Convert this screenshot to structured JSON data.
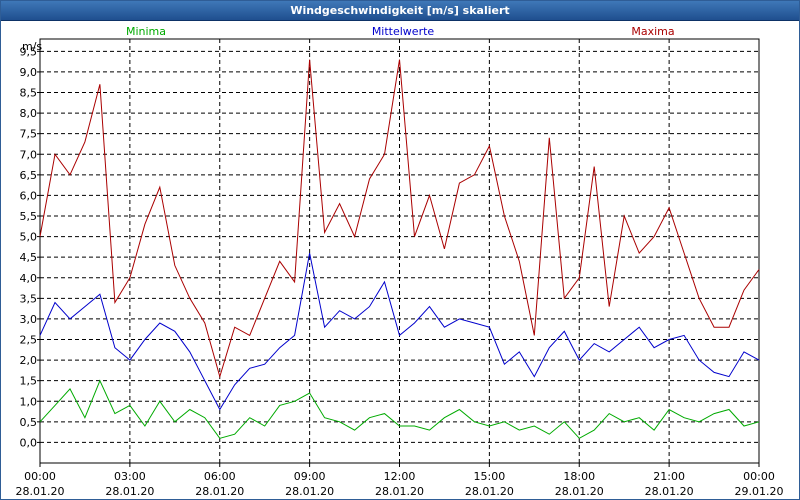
{
  "chart_data": {
    "type": "line",
    "title": "Windgeschwindigkeit [m/s] skaliert",
    "ylabel": "m/s",
    "xlabel": "",
    "ylim": [
      -0.5,
      9.8
    ],
    "grid": true,
    "y_ticks": [
      "0,0",
      "0,5",
      "1,0",
      "1,5",
      "2,0",
      "2,5",
      "3,0",
      "3,5",
      "4,0",
      "4,5",
      "5,0",
      "5,5",
      "6,0",
      "6,5",
      "7,0",
      "7,5",
      "8,0",
      "8,5",
      "9,0",
      "9,5"
    ],
    "x_ticks": [
      {
        "time": "00:00",
        "date": "28.01.20"
      },
      {
        "time": "03:00",
        "date": "28.01.20"
      },
      {
        "time": "06:00",
        "date": "28.01.20"
      },
      {
        "time": "09:00",
        "date": "28.01.20"
      },
      {
        "time": "12:00",
        "date": "28.01.20"
      },
      {
        "time": "15:00",
        "date": "28.01.20"
      },
      {
        "time": "18:00",
        "date": "28.01.20"
      },
      {
        "time": "21:00",
        "date": "28.01.20"
      },
      {
        "time": "00:00",
        "date": "29.01.20"
      }
    ],
    "x_range_hours": [
      0,
      24
    ],
    "series": [
      {
        "name": "Minima",
        "color": "#00aa00",
        "x": [
          0,
          0.5,
          1,
          1.5,
          2,
          2.5,
          3,
          3.5,
          4,
          4.5,
          5,
          5.5,
          6,
          6.5,
          7,
          7.5,
          8,
          8.5,
          9,
          9.5,
          10,
          10.5,
          11,
          11.5,
          12,
          12.5,
          13,
          13.5,
          14,
          14.5,
          15,
          15.5,
          16,
          16.5,
          17,
          17.5,
          18,
          18.5,
          19,
          19.5,
          20,
          20.5,
          21,
          21.5,
          22,
          22.5,
          23,
          23.5,
          24
        ],
        "values": [
          0.5,
          0.9,
          1.3,
          0.6,
          1.5,
          0.7,
          0.9,
          0.4,
          1.0,
          0.5,
          0.8,
          0.6,
          0.1,
          0.2,
          0.6,
          0.4,
          0.9,
          1.0,
          1.2,
          0.6,
          0.5,
          0.3,
          0.6,
          0.7,
          0.4,
          0.4,
          0.3,
          0.6,
          0.8,
          0.5,
          0.4,
          0.5,
          0.3,
          0.4,
          0.2,
          0.5,
          0.1,
          0.3,
          0.7,
          0.5,
          0.6,
          0.3,
          0.8,
          0.6,
          0.5,
          0.7,
          0.8,
          0.4,
          0.5
        ]
      },
      {
        "name": "Mittelwerte",
        "color": "#0000cc",
        "x": [
          0,
          0.5,
          1,
          1.5,
          2,
          2.5,
          3,
          3.5,
          4,
          4.5,
          5,
          5.5,
          6,
          6.5,
          7,
          7.5,
          8,
          8.5,
          9,
          9.5,
          10,
          10.5,
          11,
          11.5,
          12,
          12.5,
          13,
          13.5,
          14,
          14.5,
          15,
          15.5,
          16,
          16.5,
          17,
          17.5,
          18,
          18.5,
          19,
          19.5,
          20,
          20.5,
          21,
          21.5,
          22,
          22.5,
          23,
          23.5,
          24
        ],
        "values": [
          2.6,
          3.4,
          3.0,
          3.3,
          3.6,
          2.3,
          2.0,
          2.5,
          2.9,
          2.7,
          2.2,
          1.5,
          0.8,
          1.4,
          1.8,
          1.9,
          2.3,
          2.6,
          4.6,
          2.8,
          3.2,
          3.0,
          3.3,
          3.9,
          2.6,
          2.9,
          3.3,
          2.8,
          3.0,
          2.9,
          2.8,
          1.9,
          2.2,
          1.6,
          2.3,
          2.7,
          2.0,
          2.4,
          2.2,
          2.5,
          2.8,
          2.3,
          2.5,
          2.6,
          2.0,
          1.7,
          1.6,
          2.2,
          2.0
        ]
      },
      {
        "name": "Maxima",
        "color": "#aa0000",
        "x": [
          0,
          0.5,
          1,
          1.5,
          2,
          2.5,
          3,
          3.5,
          4,
          4.5,
          5,
          5.5,
          6,
          6.5,
          7,
          7.5,
          8,
          8.5,
          9,
          9.5,
          10,
          10.5,
          11,
          11.5,
          12,
          12.5,
          13,
          13.5,
          14,
          14.5,
          15,
          15.5,
          16,
          16.5,
          17,
          17.5,
          18,
          18.5,
          19,
          19.5,
          20,
          20.5,
          21,
          21.5,
          22,
          22.5,
          23,
          23.5,
          24
        ],
        "values": [
          5.0,
          7.0,
          6.5,
          7.3,
          8.7,
          3.4,
          4.0,
          5.3,
          6.2,
          4.3,
          3.5,
          2.9,
          1.6,
          2.8,
          2.6,
          3.5,
          4.4,
          3.9,
          9.3,
          5.1,
          5.8,
          5.0,
          6.4,
          7.0,
          9.3,
          5.0,
          6.0,
          4.7,
          6.3,
          6.5,
          7.2,
          5.5,
          4.4,
          2.6,
          7.4,
          3.5,
          4.0,
          6.7,
          3.3,
          5.5,
          4.6,
          5.0,
          5.7,
          4.6,
          3.5,
          2.8,
          2.8,
          3.7,
          4.2
        ]
      }
    ]
  }
}
